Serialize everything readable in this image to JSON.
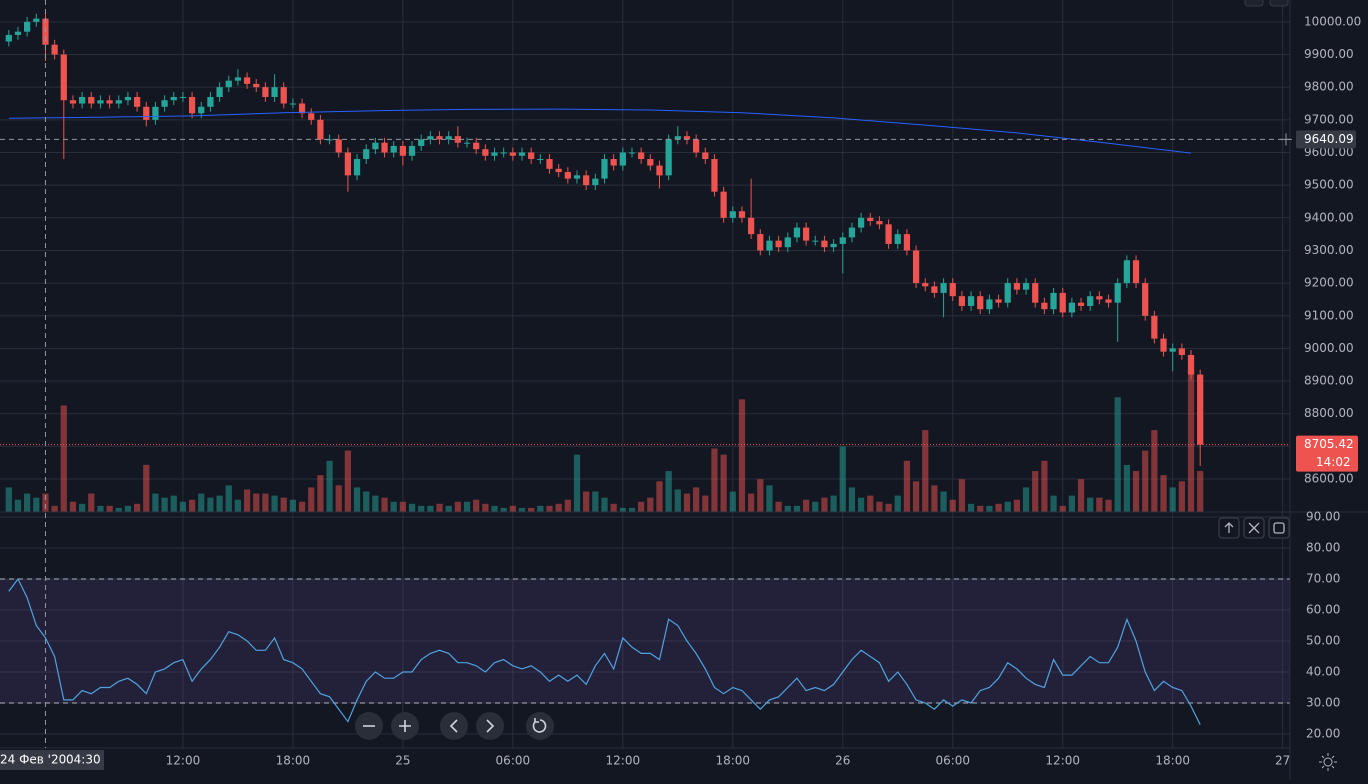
{
  "chart_data": [
    {
      "type": "candlestick",
      "x": [
        2.5,
        3,
        3.5,
        4,
        4.5,
        5,
        5.5,
        6,
        6.5,
        7,
        7.5,
        8,
        8.5,
        9,
        9.5,
        10,
        10.5,
        11,
        11.5,
        12,
        12.5,
        13,
        13.5,
        14,
        14.5,
        15,
        15.5,
        16,
        16.5,
        17,
        17.5,
        18,
        18.5,
        19,
        19.5,
        20,
        20.5,
        21,
        21.5,
        22,
        22.5,
        23,
        23.5,
        24,
        24.5,
        25,
        25.5,
        26,
        26.5,
        27,
        27.5,
        28,
        28.5,
        29,
        29.5,
        30,
        30.5,
        31,
        31.5,
        32,
        32.5,
        33,
        33.5,
        34,
        34.5,
        35,
        35.5,
        36,
        36.5,
        37,
        37.5,
        38,
        38.5,
        39,
        39.5,
        40,
        40.5,
        41,
        41.5,
        42,
        42.5,
        43,
        43.5,
        44,
        44.5,
        45,
        45.5,
        46,
        46.5,
        47,
        47.5,
        48,
        48.5,
        49,
        49.5,
        50,
        50.5,
        51,
        51.5,
        52,
        52.5,
        53,
        53.5,
        54,
        54.5,
        55,
        55.5,
        56,
        56.5,
        57,
        57.5,
        58,
        58.5,
        59,
        59.5,
        60,
        60.5,
        61,
        61.5,
        62,
        62.5,
        63,
        63.5,
        64,
        64.5,
        65,
        65.5,
        66,
        66.5,
        67,
        67.5
      ],
      "open": [
        9940,
        9960,
        9970,
        10000,
        10010,
        9930,
        9900,
        9760,
        9750,
        9770,
        9750,
        9760,
        9750,
        9760,
        9770,
        9740,
        9700,
        9740,
        9760,
        9770,
        9770,
        9720,
        9740,
        9770,
        9800,
        9820,
        9830,
        9810,
        9800,
        9770,
        9800,
        9750,
        9750,
        9720,
        9700,
        9640,
        9640,
        9600,
        9530,
        9580,
        9610,
        9630,
        9600,
        9620,
        9590,
        9620,
        9640,
        9650,
        9640,
        9650,
        9630,
        9630,
        9610,
        9590,
        9600,
        9600,
        9590,
        9600,
        9580,
        9580,
        9550,
        9540,
        9520,
        9530,
        9500,
        9520,
        9580,
        9560,
        9600,
        9600,
        9580,
        9560,
        9530,
        9640,
        9650,
        9640,
        9600,
        9580,
        9480,
        9400,
        9420,
        9400,
        9350,
        9300,
        9330,
        9310,
        9340,
        9370,
        9330,
        9330,
        9310,
        9320,
        9340,
        9370,
        9400,
        9390,
        9380,
        9320,
        9350,
        9300,
        9200,
        9190,
        9170,
        9200,
        9160,
        9130,
        9160,
        9120,
        9150,
        9140,
        9200,
        9180,
        9200,
        9140,
        9120,
        9170,
        9110,
        9140,
        9130,
        9160,
        9150,
        9140,
        9200,
        9270,
        9200,
        9100,
        9030,
        8990,
        9000,
        8980,
        8920
      ],
      "high": [
        9975,
        9985,
        10015,
        10025,
        10025,
        9945,
        9915,
        9775,
        9785,
        9785,
        9775,
        9775,
        9775,
        9785,
        9785,
        9755,
        9755,
        9775,
        9785,
        9785,
        9785,
        9755,
        9785,
        9815,
        9835,
        9855,
        9845,
        9825,
        9815,
        9840,
        9815,
        9765,
        9765,
        9735,
        9715,
        9655,
        9655,
        9615,
        9595,
        9625,
        9645,
        9645,
        9635,
        9635,
        9635,
        9655,
        9665,
        9665,
        9665,
        9680,
        9645,
        9645,
        9625,
        9615,
        9615,
        9615,
        9615,
        9615,
        9595,
        9595,
        9565,
        9555,
        9545,
        9545,
        9535,
        9595,
        9595,
        9615,
        9615,
        9615,
        9595,
        9575,
        9655,
        9680,
        9665,
        9655,
        9615,
        9595,
        9495,
        9435,
        9435,
        9520,
        9365,
        9345,
        9345,
        9355,
        9385,
        9385,
        9345,
        9345,
        9335,
        9355,
        9385,
        9415,
        9415,
        9405,
        9395,
        9365,
        9365,
        9315,
        9215,
        9205,
        9215,
        9215,
        9175,
        9175,
        9175,
        9165,
        9165,
        9215,
        9215,
        9215,
        9215,
        9155,
        9185,
        9185,
        9155,
        9155,
        9175,
        9175,
        9165,
        9215,
        9285,
        9285,
        9215,
        9115,
        9045,
        9015,
        9015,
        8995,
        8935
      ],
      "low": [
        9925,
        9945,
        9955,
        9985,
        9880,
        9885,
        9580,
        9735,
        9735,
        9735,
        9735,
        9735,
        9735,
        9745,
        9725,
        9680,
        9685,
        9725,
        9745,
        9755,
        9705,
        9705,
        9725,
        9755,
        9785,
        9805,
        9795,
        9785,
        9755,
        9755,
        9735,
        9735,
        9705,
        9685,
        9625,
        9625,
        9585,
        9480,
        9515,
        9565,
        9595,
        9585,
        9585,
        9560,
        9575,
        9605,
        9625,
        9625,
        9625,
        9615,
        9615,
        9595,
        9575,
        9575,
        9585,
        9575,
        9575,
        9565,
        9565,
        9535,
        9525,
        9505,
        9505,
        9485,
        9485,
        9505,
        9545,
        9545,
        9585,
        9565,
        9545,
        9490,
        9515,
        9625,
        9625,
        9585,
        9565,
        9465,
        9385,
        9385,
        9385,
        9335,
        9285,
        9285,
        9295,
        9295,
        9325,
        9315,
        9315,
        9295,
        9295,
        9230,
        9325,
        9355,
        9375,
        9365,
        9305,
        9305,
        9285,
        9185,
        9175,
        9155,
        9095,
        9145,
        9115,
        9115,
        9105,
        9105,
        9125,
        9125,
        9165,
        9165,
        9125,
        9105,
        9105,
        9095,
        9095,
        9115,
        9115,
        9135,
        9125,
        9020,
        9185,
        9185,
        9085,
        9015,
        8975,
        8930,
        8965,
        8905,
        8640
      ],
      "close": [
        9960,
        9970,
        10000,
        10010,
        9930,
        9900,
        9760,
        9750,
        9770,
        9750,
        9760,
        9750,
        9760,
        9770,
        9740,
        9700,
        9740,
        9760,
        9770,
        9770,
        9720,
        9740,
        9770,
        9800,
        9820,
        9830,
        9810,
        9800,
        9770,
        9800,
        9750,
        9750,
        9720,
        9700,
        9640,
        9640,
        9600,
        9530,
        9580,
        9610,
        9630,
        9600,
        9620,
        9590,
        9620,
        9640,
        9650,
        9640,
        9650,
        9630,
        9630,
        9610,
        9590,
        9600,
        9600,
        9590,
        9600,
        9580,
        9580,
        9550,
        9540,
        9520,
        9530,
        9500,
        9520,
        9580,
        9560,
        9600,
        9600,
        9580,
        9560,
        9530,
        9640,
        9650,
        9640,
        9600,
        9580,
        9480,
        9400,
        9420,
        9400,
        9350,
        9300,
        9330,
        9310,
        9340,
        9370,
        9330,
        9330,
        9310,
        9320,
        9340,
        9370,
        9400,
        9390,
        9380,
        9320,
        9350,
        9300,
        9200,
        9190,
        9170,
        9200,
        9160,
        9130,
        9160,
        9120,
        9150,
        9140,
        9200,
        9180,
        9200,
        9140,
        9120,
        9170,
        9110,
        9140,
        9130,
        9160,
        9150,
        9140,
        9200,
        9270,
        9200,
        9100,
        9030,
        8990,
        9000,
        8980,
        8920,
        8705
      ],
      "volume": [
        24,
        12,
        18,
        14,
        18,
        6,
        104,
        10,
        8,
        18,
        6,
        6,
        4,
        6,
        8,
        46,
        18,
        14,
        16,
        10,
        12,
        18,
        14,
        16,
        26,
        12,
        22,
        18,
        18,
        16,
        14,
        12,
        10,
        24,
        36,
        50,
        26,
        60,
        24,
        20,
        16,
        14,
        10,
        10,
        8,
        6,
        6,
        8,
        6,
        10,
        10,
        12,
        8,
        6,
        4,
        6,
        4,
        4,
        6,
        6,
        8,
        12,
        56,
        20,
        20,
        14,
        8,
        4,
        4,
        10,
        14,
        30,
        40,
        22,
        18,
        24,
        16,
        62,
        56,
        20,
        110,
        18,
        32,
        26,
        10,
        6,
        6,
        12,
        10,
        14,
        16,
        64,
        24,
        14,
        16,
        10,
        8,
        16,
        50,
        30,
        80,
        26,
        20,
        12,
        32,
        8,
        6,
        6,
        8,
        10,
        12,
        24,
        40,
        50,
        16,
        6,
        16,
        32,
        14,
        14,
        12,
        112,
        46,
        40,
        60,
        80,
        36,
        24,
        30,
        140,
        40
      ],
      "volume_ylim": [
        0,
        500
      ],
      "up_color": "#26a69a",
      "down_color": "#ef5350",
      "ma": {
        "color": "#2962ff",
        "x": [
          2.5,
          7.5,
          12.5,
          17.5,
          22.5,
          27.5,
          32.5,
          37.5,
          42.5,
          47.5,
          52.5,
          57.5,
          62.5,
          67
        ],
        "values": [
          9705,
          9708,
          9712,
          9722,
          9728,
          9732,
          9733,
          9730,
          9722,
          9706,
          9684,
          9660,
          9628,
          9598
        ]
      },
      "xlim": [
        2.02,
        72.4
      ],
      "ylim": [
        8499,
        10067
      ],
      "xticks": [
        {
          "value": 12,
          "label": "12:00"
        },
        {
          "value": 18,
          "label": "18:00"
        },
        {
          "value": 24,
          "label": "25"
        },
        {
          "value": 30,
          "label": "06:00"
        },
        {
          "value": 36,
          "label": "12:00"
        },
        {
          "value": 42,
          "label": "18:00"
        },
        {
          "value": 48,
          "label": "26"
        },
        {
          "value": 54,
          "label": "06:00"
        },
        {
          "value": 60,
          "label": "12:00"
        },
        {
          "value": 66,
          "label": "18:00"
        },
        {
          "value": 72,
          "label": "27"
        }
      ],
      "yticks": [
        {
          "value": 10000,
          "label": "10000.00"
        },
        {
          "value": 9900,
          "label": "9900.00"
        },
        {
          "value": 9800,
          "label": "9800.00"
        },
        {
          "value": 9700,
          "label": "9700.00"
        },
        {
          "value": 9600,
          "label": "9600.00"
        },
        {
          "value": 9500,
          "label": "9500.00"
        },
        {
          "value": 9400,
          "label": "9400.00"
        },
        {
          "value": 9300,
          "label": "9300.00"
        },
        {
          "value": 9200,
          "label": "9200.00"
        },
        {
          "value": 9100,
          "label": "9100.00"
        },
        {
          "value": 9000,
          "label": "9000.00"
        },
        {
          "value": 8900,
          "label": "8900.00"
        },
        {
          "value": 8800,
          "label": "8800.00"
        },
        {
          "value": 8700,
          "label": "8700.00"
        },
        {
          "value": 8600,
          "label": "8600.00"
        }
      ],
      "grid": true,
      "crosshair": {
        "price": 9640.09,
        "time": 4.5,
        "date_label": "24 Фев '20",
        "time_label": "04:30"
      },
      "last_price": 8705.42,
      "countdown": "14:02"
    },
    {
      "type": "line",
      "color": "#4fa3e0",
      "values": [
        66,
        70,
        64,
        55,
        51,
        45,
        31,
        31,
        34,
        33,
        35,
        35,
        37,
        38,
        36,
        33,
        40,
        41,
        43,
        44,
        37,
        41,
        44,
        48,
        53,
        52,
        50,
        47,
        47,
        51,
        44,
        43,
        41,
        37,
        33,
        32,
        28,
        24,
        31,
        37,
        40,
        38,
        38,
        40,
        40,
        44,
        46,
        47,
        46,
        43,
        43,
        42,
        40,
        43,
        44,
        42,
        41,
        42,
        40,
        37,
        39,
        37,
        39,
        36,
        42,
        46,
        41,
        51,
        48,
        46,
        46,
        44,
        57,
        55,
        50,
        46,
        41,
        35,
        33,
        35,
        34,
        31,
        28,
        31,
        32,
        35,
        38,
        34,
        35,
        34,
        36,
        40,
        44,
        47,
        45,
        43,
        37,
        40,
        36,
        31,
        30,
        28,
        31,
        29,
        31,
        30,
        34,
        35,
        38,
        43,
        41,
        38,
        36,
        35,
        44,
        39,
        39,
        42,
        45,
        43,
        43,
        48,
        57,
        50,
        40,
        34,
        37,
        35,
        34,
        29,
        23
      ],
      "ylim": [
        15.5,
        91.6
      ],
      "yticks": [
        {
          "value": 90,
          "label": "90.00"
        },
        {
          "value": 80,
          "label": "80.00"
        },
        {
          "value": 70,
          "label": "70.00"
        },
        {
          "value": 60,
          "label": "60.00"
        },
        {
          "value": 50,
          "label": "50.00"
        },
        {
          "value": 40,
          "label": "40.00"
        },
        {
          "value": 30,
          "label": "30.00"
        },
        {
          "value": 20,
          "label": "20.00"
        }
      ],
      "bands": [
        30,
        70
      ],
      "band_color": "#7e57c2"
    }
  ]
}
